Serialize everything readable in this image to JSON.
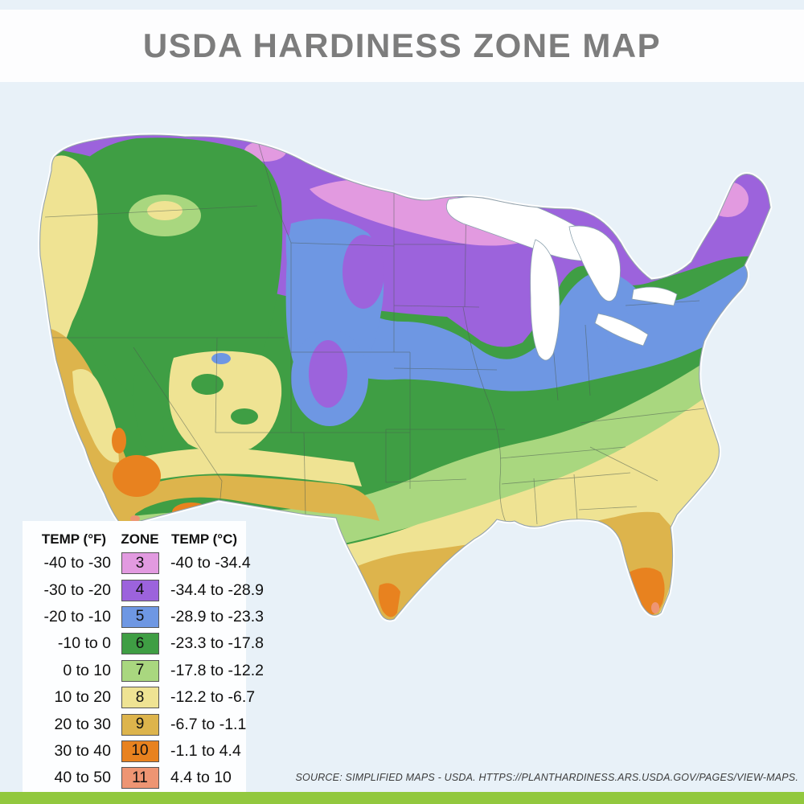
{
  "page": {
    "title": "USDA HARDINESS ZONE MAP",
    "source": "SOURCE: SIMPLIFIED MAPS - USDA. HTTPS://PLANTHARDINESS.ARS.USDA.GOV/PAGES/VIEW-MAPS."
  },
  "colors": {
    "background": "#e8f1f8",
    "header_bg": "#fdfdfe",
    "title_color": "#7d7d7d",
    "footer_bar": "#92c83e",
    "lake": "#ffffff",
    "coastline": "#94a3ad",
    "state_line": "#4a5a50",
    "panel": "#fdfeff",
    "text": "#111111"
  },
  "legend": {
    "col_f": "TEMP (°F)",
    "col_zone": "ZONE",
    "col_c": "TEMP (°C)",
    "rows": [
      {
        "f": "-40 to -30",
        "zone": "3",
        "c": "-40 to -34.4",
        "color": "#e29ae0"
      },
      {
        "f": "-30 to -20",
        "zone": "4",
        "c": "-34.4 to -28.9",
        "color": "#9c63dc"
      },
      {
        "f": "-20 to -10",
        "zone": "5",
        "c": "-28.9 to -23.3",
        "color": "#6e97e3"
      },
      {
        "f": "-10 to 0",
        "zone": "6",
        "c": "-23.3 to -17.8",
        "color": "#3f9e44"
      },
      {
        "f": "0 to 10",
        "zone": "7",
        "c": "-17.8 to -12.2",
        "color": "#a9d77f"
      },
      {
        "f": "10 to 20",
        "zone": "8",
        "c": "-12.2 to -6.7",
        "color": "#efe393"
      },
      {
        "f": "20 to 30",
        "zone": "9",
        "c": "-6.7 to -1.1",
        "color": "#ddb44c"
      },
      {
        "f": "30 to 40",
        "zone": "10",
        "c": "-1.1 to 4.4",
        "color": "#e8821f"
      },
      {
        "f": "40 to 50",
        "zone": "11",
        "c": "4.4 to 10",
        "color": "#ee9573"
      }
    ]
  }
}
